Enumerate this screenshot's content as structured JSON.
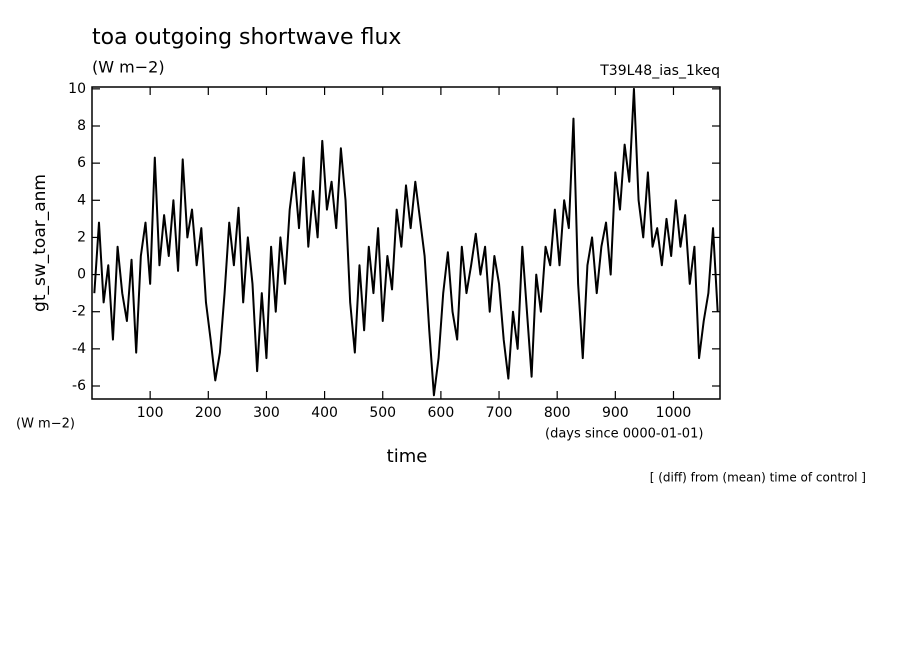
{
  "chart_data": {
    "type": "line",
    "title": "toa outgoing shortwave flux",
    "subtitle": "(W m−2)",
    "run_label": "T39L48_ias_1keq",
    "y_label": "gt_sw_toar_anm",
    "y_units": "(W m−2)",
    "x_units": "(days since 0000-01-01)",
    "x_label": "time",
    "note": "[ (diff) from (mean) time of control ]",
    "x": [
      4,
      12,
      20,
      28,
      36,
      44,
      52,
      60,
      68,
      76,
      84,
      92,
      100,
      108,
      116,
      124,
      132,
      140,
      148,
      156,
      164,
      172,
      180,
      188,
      196,
      204,
      212,
      220,
      228,
      236,
      244,
      252,
      260,
      268,
      276,
      284,
      292,
      300,
      308,
      316,
      324,
      332,
      340,
      348,
      356,
      364,
      372,
      380,
      388,
      396,
      404,
      412,
      420,
      428,
      436,
      444,
      452,
      460,
      468,
      476,
      484,
      492,
      500,
      508,
      516,
      524,
      532,
      540,
      548,
      556,
      564,
      572,
      580,
      588,
      596,
      604,
      612,
      620,
      628,
      636,
      644,
      652,
      660,
      668,
      676,
      684,
      692,
      700,
      708,
      716,
      724,
      732,
      740,
      748,
      756,
      764,
      772,
      780,
      788,
      796,
      804,
      812,
      820,
      828,
      836,
      844,
      852,
      860,
      868,
      876,
      884,
      892,
      900,
      908,
      916,
      924,
      932,
      940,
      948,
      956,
      964,
      972,
      980,
      988,
      996,
      1004,
      1012,
      1020,
      1028,
      1036,
      1044,
      1052,
      1060,
      1068,
      1076
    ],
    "series": [
      {
        "name": "gt_sw_toar_anm",
        "color": "#000000",
        "values": [
          -1,
          2.8,
          -1.5,
          0.5,
          -3.5,
          1.5,
          -1,
          -2.5,
          0.8,
          -4.2,
          1,
          2.8,
          -0.5,
          6.3,
          0.5,
          3.2,
          1,
          4,
          0.2,
          6.2,
          2,
          3.5,
          0.5,
          2.5,
          -1.5,
          -3.5,
          -5.7,
          -4.2,
          -1,
          2.8,
          0.5,
          3.6,
          -1.5,
          2,
          -0.5,
          -5.2,
          -1,
          -4.5,
          1.5,
          -2,
          2,
          -0.5,
          3.5,
          5.5,
          2.5,
          6.3,
          1.5,
          4.5,
          2,
          7.2,
          3.5,
          5,
          2.5,
          6.8,
          4,
          -1.5,
          -4.2,
          0.5,
          -3,
          1.5,
          -1,
          2.5,
          -2.5,
          1,
          -0.8,
          3.5,
          1.5,
          4.8,
          2.5,
          5,
          3,
          1,
          -3,
          -6.5,
          -4.5,
          -1,
          1.2,
          -2,
          -3.5,
          1.5,
          -1,
          0.5,
          2.2,
          0,
          1.5,
          -2,
          1,
          -0.5,
          -3.5,
          -5.6,
          -2,
          -4,
          1.5,
          -2,
          -5.5,
          0,
          -2,
          1.5,
          0.5,
          3.5,
          0.5,
          4,
          2.5,
          8.4,
          -0.5,
          -4.5,
          0.5,
          2,
          -1,
          1.5,
          2.8,
          0,
          5.5,
          3.5,
          7,
          5,
          10,
          4,
          2,
          5.5,
          1.5,
          2.5,
          0.5,
          3,
          1,
          4,
          1.5,
          3.2,
          -0.5,
          1.5,
          -4.5,
          -2.5,
          -1,
          2.5,
          -2
        ]
      }
    ],
    "xlim": [
      0,
      1080
    ],
    "xticks": [
      100,
      200,
      300,
      400,
      500,
      600,
      700,
      800,
      900,
      1000
    ],
    "ylim": [
      -6.7,
      10.1
    ],
    "yticks": [
      -6,
      -4,
      -2,
      0,
      2,
      4,
      6,
      8,
      10
    ]
  }
}
